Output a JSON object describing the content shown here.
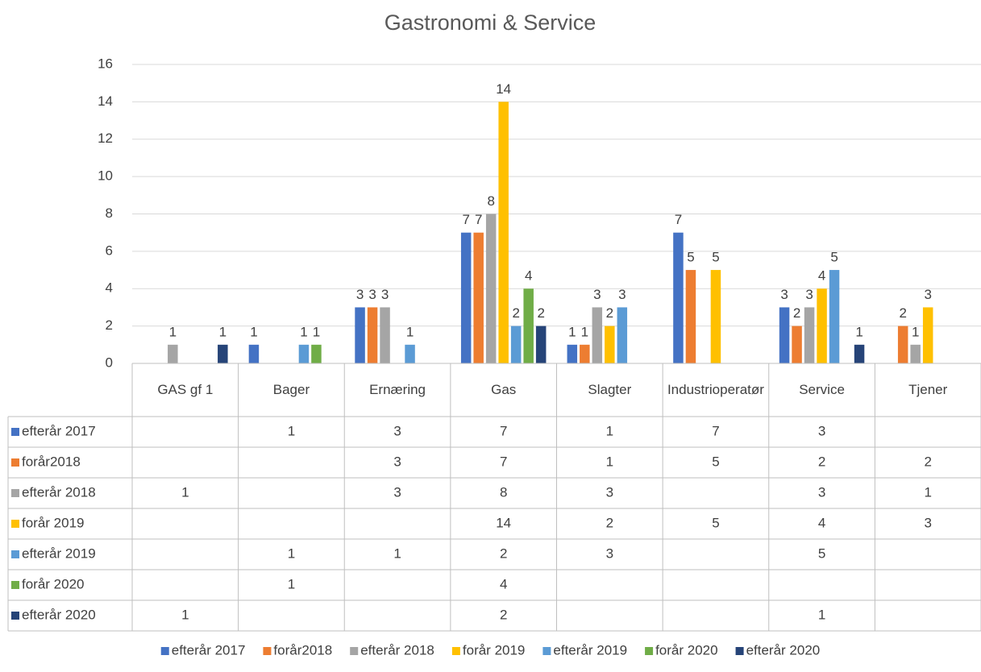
{
  "chart_data": {
    "type": "bar",
    "title": "Gastronomi & Service",
    "categories": [
      "GAS gf 1",
      "Bager",
      "Ernæring",
      "Gas",
      "Slagter",
      "Industrioperatør",
      "Service",
      "Tjener"
    ],
    "series": [
      {
        "name": "efterår 2017",
        "color": "#4472c4",
        "values": [
          null,
          1,
          3,
          7,
          1,
          7,
          3,
          null
        ]
      },
      {
        "name": "forår2018",
        "color": "#ed7d31",
        "values": [
          null,
          null,
          3,
          7,
          1,
          5,
          2,
          2
        ]
      },
      {
        "name": "efterår 2018",
        "color": "#a5a5a5",
        "values": [
          1,
          null,
          3,
          8,
          3,
          null,
          3,
          1
        ]
      },
      {
        "name": "forår 2019",
        "color": "#ffc000",
        "values": [
          null,
          null,
          null,
          14,
          2,
          5,
          4,
          3
        ]
      },
      {
        "name": "efterår 2019",
        "color": "#5b9bd5",
        "values": [
          null,
          1,
          1,
          2,
          3,
          null,
          5,
          null
        ]
      },
      {
        "name": "forår 2020",
        "color": "#70ad47",
        "values": [
          null,
          1,
          null,
          4,
          null,
          null,
          null,
          null
        ]
      },
      {
        "name": "efterår 2020",
        "color": "#264478",
        "values": [
          1,
          null,
          null,
          2,
          null,
          null,
          1,
          null
        ]
      }
    ],
    "ylim": [
      0,
      16
    ],
    "yticks": [
      0,
      2,
      4,
      6,
      8,
      10,
      12,
      14,
      16
    ],
    "grid": true,
    "legend": "bottom",
    "data_table": true
  }
}
